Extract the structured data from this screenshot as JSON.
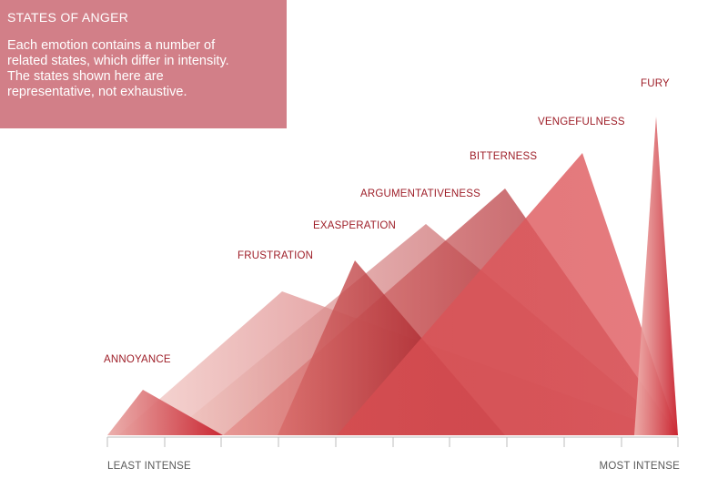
{
  "info_box": {
    "title": "STATES OF ANGER",
    "lines": [
      "Each emotion contains a number of",
      "related states, which differ in intensity.",
      "The states shown here are",
      "representative, not exhaustive."
    ],
    "background_color": "#d27f88"
  },
  "axis": {
    "left_label": "LEAST INTENSE",
    "right_label": "MOST INTENSE"
  },
  "states": [
    {
      "label": "ANNOYANCE",
      "base_color": "#c8202c"
    },
    {
      "label": "FRUSTRATION",
      "base_color": "#d46a6f"
    },
    {
      "label": "EXASPERATION",
      "base_color": "#bf2a32"
    },
    {
      "label": "ARGUMENTATIVENESS",
      "base_color": "#d04850"
    },
    {
      "label": "BITTERNESS",
      "base_color": "#c4262e"
    },
    {
      "label": "VENGEFULNESS",
      "base_color": "#c62830"
    },
    {
      "label": "FURY",
      "base_color": "#c8202c"
    }
  ]
}
